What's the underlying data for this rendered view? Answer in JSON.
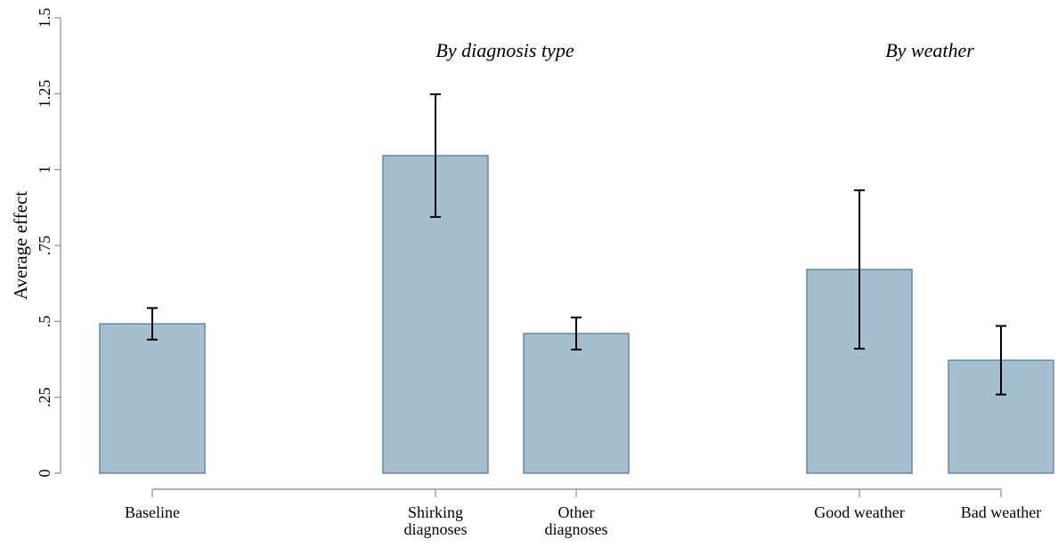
{
  "chart_data": {
    "type": "bar",
    "ylabel": "Average effect",
    "annotations": [
      "By diagnosis type",
      "By weather"
    ],
    "categories": [
      "Baseline",
      "Shirking diagnoses",
      "Other diagnoses",
      "Good weather",
      "Bad weather"
    ],
    "values": [
      0.492,
      1.046,
      0.46,
      0.671,
      0.372
    ],
    "errors": [
      0.052,
      0.202,
      0.053,
      0.261,
      0.113
    ],
    "color": "#a5bfd1",
    "edgecolor": "#5f8aa6",
    "ylim": [
      0,
      1.5
    ],
    "yticks": [
      0,
      {
        "value": 0.25,
        "label": ".25"
      },
      {
        "value": 0.5,
        "label": ".5"
      },
      {
        "value": 0.75,
        "label": ".75"
      },
      1,
      1.25,
      1.5
    ],
    "grid": false
  }
}
